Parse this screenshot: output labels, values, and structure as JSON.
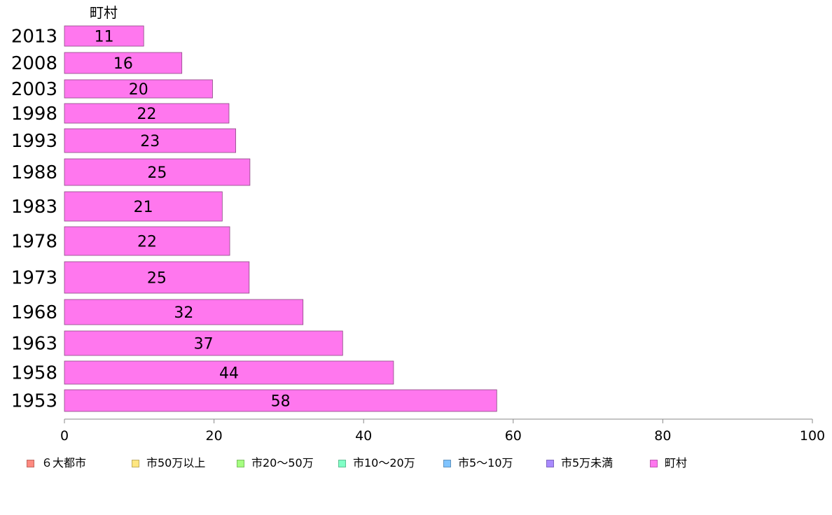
{
  "chart_data": {
    "type": "bar",
    "orientation": "horizontal",
    "series_label": "町村",
    "categories": [
      "2013",
      "2008",
      "2003",
      "1998",
      "1993",
      "1988",
      "1983",
      "1978",
      "1973",
      "1968",
      "1963",
      "1958",
      "1953"
    ],
    "values": [
      11,
      16,
      20,
      22,
      23,
      25,
      21,
      22,
      25,
      32,
      37,
      44,
      58
    ],
    "bar_values": [
      10.6,
      15.7,
      19.8,
      22.0,
      22.9,
      24.8,
      21.1,
      22.1,
      24.7,
      31.9,
      37.2,
      44.0,
      57.8
    ],
    "xlim": [
      0,
      100
    ],
    "x_ticks": [
      "0",
      "20",
      "40",
      "60",
      "80",
      "100"
    ],
    "x_tick_values": [
      0,
      20,
      40,
      60,
      80,
      100
    ],
    "bar_color": "#ff77ee",
    "grid": false,
    "legend_position": "bottom",
    "legend": [
      {
        "label": "６大都市",
        "color": "#ff8a80"
      },
      {
        "label": "市50万以上",
        "color": "#ffe680"
      },
      {
        "label": "市20〜50万",
        "color": "#a5ff80"
      },
      {
        "label": "市10〜20万",
        "color": "#80ffc6"
      },
      {
        "label": "市5〜10万",
        "color": "#80c4ff"
      },
      {
        "label": "市5万未満",
        "color": "#a98aff"
      },
      {
        "label": "町村",
        "color": "#ff77ee"
      }
    ]
  }
}
